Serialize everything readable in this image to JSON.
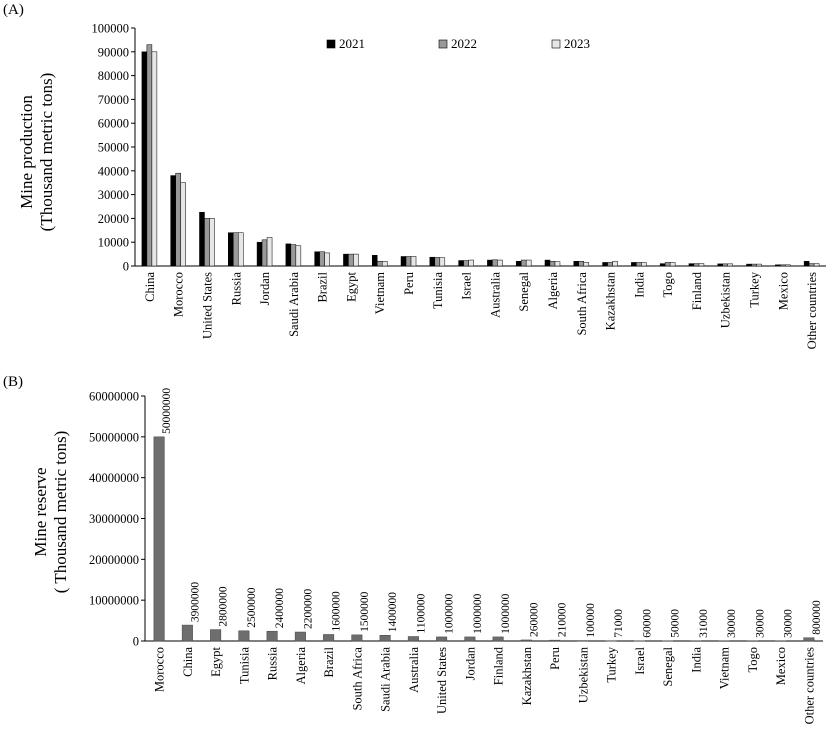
{
  "chart_data": [
    {
      "type": "bar",
      "panel_label": "(A)",
      "ylabel_lines": [
        "Mine production",
        "(Thousand metric tons)"
      ],
      "ylim": [
        0,
        100000
      ],
      "yticks": [
        0,
        10000,
        20000,
        30000,
        40000,
        50000,
        60000,
        70000,
        80000,
        90000,
        100000
      ],
      "grid": false,
      "legend_position": "top-center",
      "categories": [
        "China",
        "Morocco",
        "United States",
        "Russia",
        "Jordan",
        "Saudi Arabia",
        "Brazil",
        "Egypt",
        "Vietnam",
        "Peru",
        "Tunisia",
        "Israel",
        "Australia",
        "Senegal",
        "Algeria",
        "South Africa",
        "Kazakhstan",
        "India",
        "Togo",
        "Finland",
        "Uzbekistan",
        "Turkey",
        "Mexico",
        "Other countries"
      ],
      "series": [
        {
          "name": "2021",
          "color": "#000000",
          "values": [
            90000,
            38000,
            22600,
            14000,
            10000,
            9300,
            6000,
            5000,
            4500,
            4000,
            3700,
            2300,
            2500,
            2000,
            2500,
            2000,
            1500,
            1500,
            1000,
            1000,
            900,
            800,
            500,
            2000
          ]
        },
        {
          "name": "2022",
          "color": "#999999",
          "values": [
            93000,
            39000,
            20000,
            14000,
            11000,
            9000,
            6000,
            5000,
            2000,
            4000,
            3600,
            2300,
            2600,
            2500,
            2000,
            2000,
            1500,
            1500,
            1500,
            1000,
            900,
            800,
            500,
            1000
          ]
        },
        {
          "name": "2023",
          "color": "#e6e6e6",
          "values": [
            90000,
            35000,
            20000,
            14000,
            12000,
            8500,
            5500,
            5000,
            2000,
            4000,
            3500,
            2500,
            2500,
            2500,
            1800,
            1500,
            2000,
            1500,
            1500,
            1000,
            900,
            800,
            500,
            1000
          ]
        }
      ]
    },
    {
      "type": "bar",
      "panel_label": "(B)",
      "ylabel_lines": [
        "Mine reserve",
        "( Thousand metric tons)"
      ],
      "ylim": [
        0,
        60000000
      ],
      "yticks": [
        0,
        10000000,
        20000000,
        30000000,
        40000000,
        50000000,
        60000000
      ],
      "grid": false,
      "bar_color": "#6e6e6e",
      "categories": [
        "Morocco",
        "China",
        "Egypt",
        "Tunisia",
        "Russia",
        "Algeria",
        "Brazil",
        "South Africa",
        "Saudi Arabia",
        "Australia",
        "United States",
        "Jordan",
        "Finland",
        "Kazakhstan",
        "Peru",
        "Uzbekistan",
        "Turkey",
        "Israel",
        "Senegal",
        "India",
        "Vietnam",
        "Togo",
        "Mexico",
        "Other countries"
      ],
      "values": [
        50000000,
        3900000,
        2800000,
        2500000,
        2400000,
        2200000,
        1600000,
        1500000,
        1400000,
        1100000,
        1000000,
        1000000,
        1000000,
        260000,
        210000,
        100000,
        71000,
        60000,
        50000,
        31000,
        30000,
        30000,
        30000,
        800000
      ],
      "data_labels": [
        "50000000",
        "3900000",
        "2800000",
        "2500000",
        "2400000",
        "2200000",
        "1600000",
        "1500000",
        "1400000",
        "1100000",
        "1000000",
        "1000000",
        "1000000",
        "260000",
        "210000",
        "100000",
        "71000",
        "60000",
        "50000",
        "31000",
        "30000",
        "30000",
        "30000",
        "800000"
      ]
    }
  ]
}
